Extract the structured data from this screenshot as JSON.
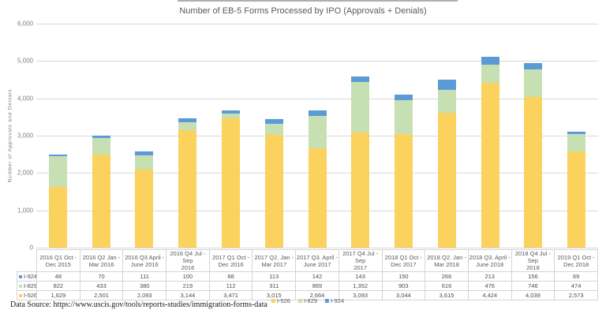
{
  "page": {
    "title": "Number of EB-5 Forms Processed by IPO (Approvals + Denials)",
    "data_source": "Data Source: https://www.uscis.gov/tools/reports-studies/immigration-forms-data"
  },
  "y_axis": {
    "title": "Number of Approvals and Denials",
    "ticks": [
      "6,000",
      "5,000",
      "4,000",
      "3,000",
      "2,000",
      "1,000",
      "0"
    ]
  },
  "chart_data": {
    "type": "bar",
    "stacked": true,
    "title": "Number of EB-5 Forms Processed by IPO (Approvals + Denials)",
    "xlabel": "",
    "ylabel": "Number of Approvals and Denials",
    "ylim": [
      0,
      6000
    ],
    "grid": true,
    "legend_position": "bottom",
    "categories": [
      "2016 Q1 Oct - Dec 2015",
      "2016 Q2 Jan - Mar 2016",
      "2016 Q3 April - June 2016",
      "2016 Q4 Jul - Sep 2016",
      "2017 Q1 Oct - Dec 2016",
      "2017 Q2. Jan - Mar 2017",
      "2017 Q3. April - June 2017",
      "2017 Q4 Jul - Sep 2017",
      "2018 Q1 Oct - Dec 2017",
      "2018 Q2. Jan - Mar 2018",
      "2018 Q3. April - June 2018",
      "2018 Q4 Jul - Sep 2018",
      "2019 Q1 Oct - Dec 2018"
    ],
    "series": [
      {
        "name": "I-526",
        "color": "#FBD25E",
        "values": [
          1629,
          2501,
          2093,
          3144,
          3471,
          3015,
          2664,
          3093,
          3044,
          3615,
          4424,
          4039,
          2573
        ]
      },
      {
        "name": "I-829",
        "color": "#C6E0B4",
        "values": [
          822,
          433,
          380,
          219,
          112,
          311,
          869,
          1352,
          903,
          616,
          476,
          746,
          474
        ]
      },
      {
        "name": "I-924",
        "color": "#5B9BD5",
        "values": [
          48,
          70,
          111,
          100,
          88,
          113,
          142,
          143,
          150,
          266,
          213,
          156,
          69
        ]
      }
    ]
  },
  "table": {
    "column_headers": [
      [
        "2016 Q1 Oct -",
        "Dec 2015"
      ],
      [
        "2016 Q2 Jan -",
        "Mar 2016"
      ],
      [
        "2016 Q3 April -",
        "June 2016"
      ],
      [
        "2016 Q4 Jul - Sep",
        "2016"
      ],
      [
        "2017 Q1 Oct -",
        "Dec 2016"
      ],
      [
        "2017 Q2. Jan -",
        "Mar 2017"
      ],
      [
        "2017 Q3. April -",
        "June 2017"
      ],
      [
        "2017 Q4 Jul - Sep",
        "2017"
      ],
      [
        "2018 Q1 Oct -",
        "Dec 2017"
      ],
      [
        "2018 Q2. Jan -",
        "Mar 2018"
      ],
      [
        "2018 Q3. April -",
        "June 2018"
      ],
      [
        "2018 Q4 Jul - Sep",
        "2018"
      ],
      [
        "2019 Q1 Oct -",
        "Dec 2018"
      ]
    ],
    "rows": [
      {
        "label": "I-924",
        "color": "#5B9BD5",
        "values": [
          "48",
          "70",
          "111",
          "100",
          "88",
          "113",
          "142",
          "143",
          "150",
          "266",
          "213",
          "156",
          "69"
        ]
      },
      {
        "label": "I-829",
        "color": "#C6E0B4",
        "values": [
          "822",
          "433",
          "380",
          "219",
          "112",
          "311",
          "869",
          "1,352",
          "903",
          "616",
          "476",
          "746",
          "474"
        ]
      },
      {
        "label": "I-526",
        "color": "#FBD25E",
        "values": [
          "1,629",
          "2,501",
          "2,093",
          "3,144",
          "3,471",
          "3,015",
          "2,664",
          "3,093",
          "3,044",
          "3,615",
          "4,424",
          "4,039",
          "2,573"
        ]
      }
    ]
  },
  "legend": {
    "items": [
      {
        "label": "I-526",
        "color": "#FBD25E"
      },
      {
        "label": "I-829",
        "color": "#C6E0B4"
      },
      {
        "label": "I-924",
        "color": "#5B9BD5"
      }
    ]
  }
}
